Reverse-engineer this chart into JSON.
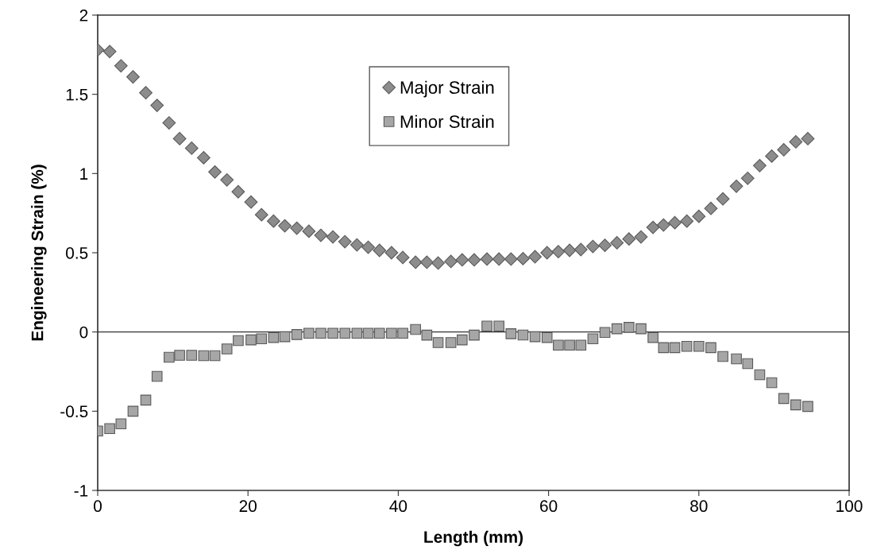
{
  "chart_data": {
    "type": "scatter",
    "xlabel": "Length (mm)",
    "ylabel": "Engineering Strain (%)",
    "xlim": [
      0,
      100
    ],
    "xticks": [
      0,
      20,
      40,
      60,
      80,
      100
    ],
    "ylim": [
      -1,
      2
    ],
    "yticks": [
      {
        "value": -1,
        "label": "-1"
      },
      {
        "value": -0.5,
        "label": "-0.5"
      },
      0,
      0.5,
      1,
      1.5,
      2
    ],
    "grid": false,
    "legend": "top",
    "ref_lines": [
      {
        "axis": "y",
        "value": 0,
        "color": "#333333"
      }
    ],
    "x": [
      0,
      1.6,
      3.1,
      4.7,
      6.4,
      7.9,
      9.5,
      10.9,
      12.5,
      14.1,
      15.6,
      17.2,
      18.7,
      20.4,
      21.8,
      23.4,
      24.9,
      26.5,
      28.1,
      29.7,
      31.3,
      32.9,
      34.5,
      36.0,
      37.5,
      39.1,
      40.6,
      42.3,
      43.8,
      45.3,
      47.0,
      48.5,
      50.1,
      51.8,
      53.4,
      55.0,
      56.6,
      58.2,
      59.8,
      61.3,
      62.8,
      64.3,
      65.9,
      67.5,
      69.1,
      70.7,
      72.3,
      73.9,
      75.3,
      76.8,
      78.4,
      80.0,
      81.6,
      83.2,
      85.0,
      86.5,
      88.1,
      89.7,
      91.3,
      92.9,
      94.5
    ],
    "series": [
      {
        "name": "Major Strain",
        "color": "#8c8c8c",
        "marker": "diamond",
        "values": [
          1.78,
          1.77,
          1.68,
          1.61,
          1.51,
          1.43,
          1.32,
          1.22,
          1.16,
          1.1,
          1.01,
          0.96,
          0.885,
          0.82,
          0.74,
          0.7,
          0.67,
          0.655,
          0.636,
          0.61,
          0.6,
          0.57,
          0.55,
          0.535,
          0.515,
          0.5,
          0.47,
          0.44,
          0.44,
          0.435,
          0.445,
          0.455,
          0.455,
          0.46,
          0.46,
          0.46,
          0.463,
          0.475,
          0.5,
          0.507,
          0.515,
          0.52,
          0.54,
          0.547,
          0.563,
          0.587,
          0.6,
          0.66,
          0.675,
          0.69,
          0.7,
          0.73,
          0.78,
          0.84,
          0.92,
          0.97,
          1.05,
          1.11,
          1.15,
          1.2,
          1.22
        ]
      },
      {
        "name": "Minor Strain",
        "color": "#a6a6a6",
        "marker": "square",
        "values": [
          -0.625,
          -0.61,
          -0.58,
          -0.5,
          -0.43,
          -0.28,
          -0.16,
          -0.147,
          -0.147,
          -0.15,
          -0.15,
          -0.107,
          -0.054,
          -0.05,
          -0.043,
          -0.035,
          -0.03,
          -0.016,
          -0.008,
          -0.008,
          -0.008,
          -0.008,
          -0.008,
          -0.008,
          -0.008,
          -0.008,
          -0.008,
          0.016,
          -0.02,
          -0.067,
          -0.067,
          -0.05,
          -0.02,
          0.037,
          0.037,
          -0.011,
          -0.019,
          -0.03,
          -0.035,
          -0.083,
          -0.083,
          -0.083,
          -0.043,
          -0.003,
          0.02,
          0.029,
          0.02,
          -0.035,
          -0.099,
          -0.099,
          -0.091,
          -0.091,
          -0.099,
          -0.155,
          -0.17,
          -0.2,
          -0.27,
          -0.32,
          -0.42,
          -0.46,
          -0.47
        ]
      }
    ]
  }
}
